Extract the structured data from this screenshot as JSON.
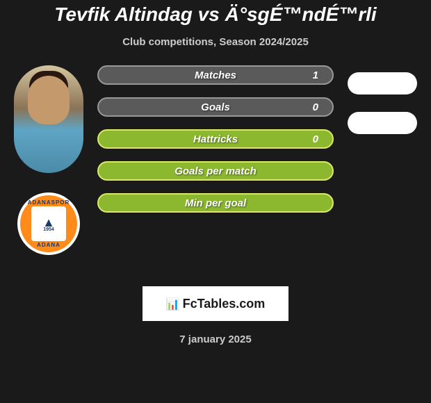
{
  "title": "Tevfik Altindag vs Ä°sgÉ™ndÉ™rli",
  "subtitle": "Club competitions, Season 2024/2025",
  "stats": [
    {
      "label": "Matches",
      "value": "1",
      "style": "gray"
    },
    {
      "label": "Goals",
      "value": "0",
      "style": "gray"
    },
    {
      "label": "Hattricks",
      "value": "0",
      "style": "green"
    },
    {
      "label": "Goals per match",
      "value": "",
      "style": "green"
    },
    {
      "label": "Min per goal",
      "value": "",
      "style": "green"
    }
  ],
  "team_logo": {
    "text_top": "ADANASPOR",
    "text_bottom": "ADANA",
    "year": "1954"
  },
  "footer": {
    "site_name": "FcTables.com",
    "date": "7 january 2025"
  },
  "colors": {
    "background": "#1a1a1a",
    "bar_gray": "#5a5a5a",
    "bar_gray_border": "#999999",
    "bar_green": "#8bb82e",
    "bar_green_border": "#dde869",
    "logo_orange": "#ff8c1a",
    "logo_navy": "#1a3a6e",
    "text_white": "#ffffff",
    "text_gray": "#cccccc"
  }
}
